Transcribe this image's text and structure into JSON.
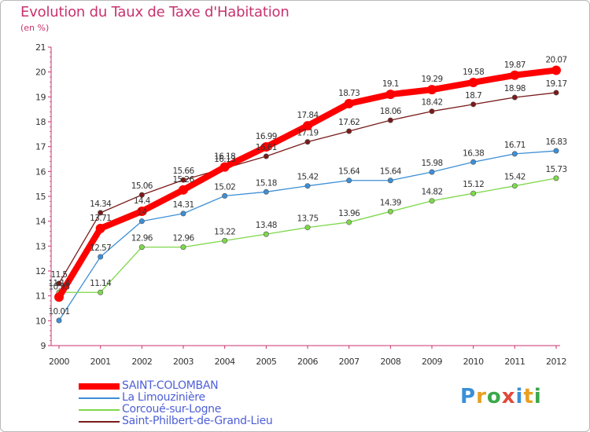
{
  "title": "Evolution du Taux de Taxe d'Habitation",
  "subtitle": "(en %)",
  "logo": {
    "letters": [
      "P",
      "r",
      "o",
      "x",
      "i",
      "t",
      "i"
    ],
    "colors": [
      "#3a8fd8",
      "#e8a020",
      "#3aa84a",
      "#e04a3a",
      "#3a8fd8",
      "#e8a020",
      "#3aa84a"
    ]
  },
  "chart_data": {
    "type": "line",
    "title": "Evolution du Taux de Taxe d'Habitation",
    "ylabel": "(en %)",
    "xlabel": "",
    "x": [
      2000,
      2001,
      2002,
      2003,
      2004,
      2005,
      2006,
      2007,
      2008,
      2009,
      2010,
      2011,
      2012
    ],
    "x_tick_labels": [
      "2000",
      "2001",
      "2002",
      "2003",
      "2004",
      "2005",
      "2006",
      "2007",
      "2008",
      "2009",
      "2010",
      "2011",
      "2012"
    ],
    "ylim": [
      9,
      21
    ],
    "y_ticks": [
      9,
      10,
      11,
      12,
      13,
      14,
      15,
      16,
      17,
      18,
      19,
      20,
      21
    ],
    "grid": false,
    "legend_position": "bottom-left",
    "series": [
      {
        "name": "SAINT-COLOMBAN",
        "color": "#ff0000",
        "emphasis": true,
        "values": [
          10.95,
          13.71,
          14.4,
          15.26,
          16.18,
          16.99,
          17.84,
          18.73,
          19.1,
          19.29,
          19.58,
          19.87,
          20.07
        ],
        "labels": [
          "10.95",
          "13.71",
          "14.4",
          "15.26",
          "16.18",
          "16.99",
          "17.84",
          "18.73",
          "19.1",
          "19.29",
          "19.58",
          "19.87",
          "20.07"
        ]
      },
      {
        "name": "La Limouzinière",
        "color": "#3d8fd6",
        "values": [
          10.01,
          12.57,
          14.0,
          14.31,
          15.02,
          15.18,
          15.42,
          15.64,
          15.64,
          15.98,
          16.38,
          16.71,
          16.83
        ],
        "labels": [
          "10.01",
          "12.57",
          "14",
          "14.31",
          "15.02",
          "15.18",
          "15.42",
          "15.64",
          "15.64",
          "15.98",
          "16.38",
          "16.71",
          "16.83"
        ]
      },
      {
        "name": "Corcoué-sur-Logne",
        "color": "#7ed84a",
        "values": [
          11.14,
          11.14,
          12.96,
          12.96,
          13.22,
          13.48,
          13.75,
          13.96,
          14.39,
          14.82,
          15.12,
          15.42,
          15.73
        ],
        "labels": [
          "11.14",
          "11.14",
          "12.96",
          "12.96",
          "13.22",
          "13.48",
          "13.75",
          "13.96",
          "14.39",
          "14.82",
          "15.12",
          "15.42",
          "15.73"
        ]
      },
      {
        "name": "Saint-Philbert-de-Grand-Lieu",
        "color": "#7a1a1a",
        "values": [
          11.5,
          14.34,
          15.06,
          15.66,
          16.13,
          16.61,
          17.19,
          17.62,
          18.06,
          18.42,
          18.7,
          18.98,
          19.17
        ],
        "labels": [
          "11.5",
          "14.34",
          "15.06",
          "15.66",
          "16.13",
          "16.61",
          "17.19",
          "17.62",
          "18.06",
          "18.42",
          "18.7",
          "18.98",
          "19.17"
        ]
      }
    ]
  }
}
